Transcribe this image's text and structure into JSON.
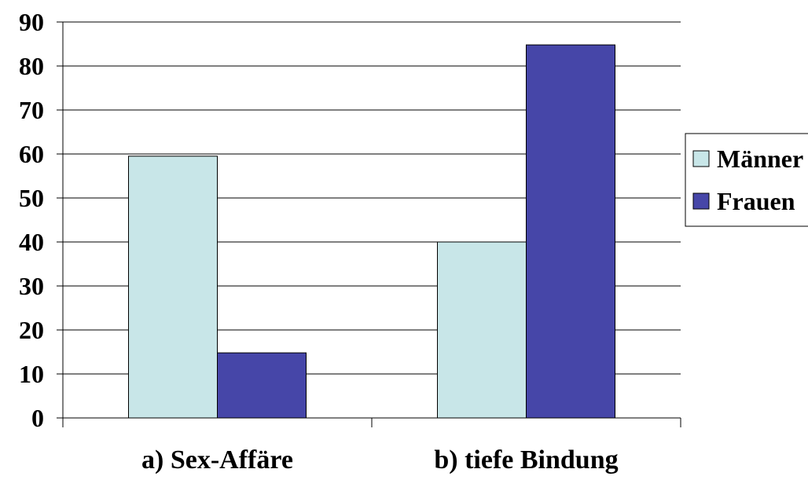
{
  "chart_data": {
    "type": "bar",
    "categories": [
      "a) Sex-Affäre",
      "b) tiefe Bindung"
    ],
    "series": [
      {
        "name": "Männer",
        "values": [
          59.5,
          40
        ],
        "color": "#c8e6e8"
      },
      {
        "name": "Frauen",
        "values": [
          14.8,
          84.8
        ],
        "color": "#4646a8"
      }
    ],
    "ylim": [
      0,
      90
    ],
    "yticks": [
      "0",
      "10",
      "20",
      "30",
      "40",
      "50",
      "60",
      "70",
      "80",
      "90"
    ],
    "grid": true,
    "legend_position": "right"
  }
}
